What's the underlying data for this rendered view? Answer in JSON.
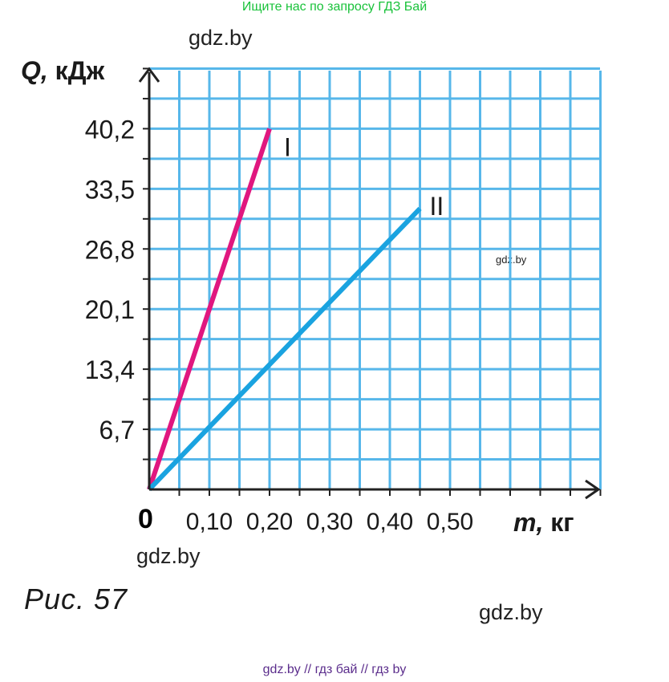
{
  "banner": "Ищите нас по запросу ГДЗ Бай",
  "watermarks": {
    "top": "gdz.by",
    "middle": "gdz.by",
    "left": "gdz.by",
    "right": "gdz.by"
  },
  "footer": "gdz.by  //  гдз бай  //  гдз by",
  "caption": "Рис.  57",
  "colors": {
    "grid": "#57b7ea",
    "series_1": "#e0177f",
    "series_2": "#1aa3e0",
    "axis": "#222222"
  },
  "chart_data": {
    "type": "line",
    "xlabel": "m, кг",
    "ylabel": "Q, кДж",
    "origin_label": "0",
    "x_ticks": [
      0.1,
      0.2,
      0.3,
      0.4,
      0.5
    ],
    "x_tick_labels": [
      "0,10",
      "0,20",
      "0,30",
      "0,40",
      "0,50"
    ],
    "y_ticks": [
      6.7,
      13.4,
      20.1,
      26.8,
      33.5,
      40.2
    ],
    "y_tick_labels": [
      "6,7",
      "13,4",
      "20,1",
      "26,8",
      "33,5",
      "40,2"
    ],
    "xlim": [
      0,
      0.75
    ],
    "ylim": [
      0,
      46.9
    ],
    "grid": true,
    "series": [
      {
        "name": "I",
        "x": [
          0,
          0.2
        ],
        "y": [
          0,
          40.2
        ]
      },
      {
        "name": "II",
        "x": [
          0,
          0.45
        ],
        "y": [
          0,
          31.3
        ]
      }
    ]
  }
}
